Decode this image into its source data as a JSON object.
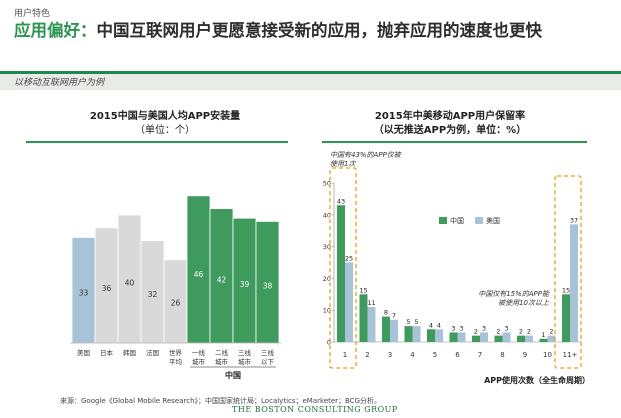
{
  "header": {
    "kicker": "用户特色",
    "title_highlight": "应用偏好：",
    "title_rest": "中国互联网用户更愿意接受新的应用，抛弃应用的速度也更快",
    "subtitle": "以移动互联网用户为例"
  },
  "left_chart_title": "2015中国与美国人均APP安装量",
  "left_chart_unit": "（单位：个）",
  "right_chart_title": "2015年中美移动APP用户保留率",
  "right_chart_unit": "（以无推送APP为例，单位：%）",
  "colors": {
    "green": "#3f9a5e",
    "blue": "#a8c3d8",
    "gray": "#d9d9d9",
    "accent": "#2e9452"
  },
  "chart_data": [
    {
      "type": "bar",
      "title": "2015中国与美国人均APP安装量",
      "subtitle": "（单位：个）",
      "categories": [
        "美国",
        "日本",
        "韩国",
        "法国",
        "世界平均",
        "一线城市",
        "二线城市",
        "三线城市",
        "三线以下"
      ],
      "values": [
        33,
        36,
        40,
        32,
        26,
        46,
        42,
        39,
        38
      ],
      "colors": [
        "blue",
        "gray",
        "gray",
        "gray",
        "gray",
        "green",
        "green",
        "green",
        "green"
      ],
      "group_label": "中国",
      "ylim": [
        0,
        50
      ]
    },
    {
      "type": "bar",
      "title": "2015年中美移动APP用户保留率",
      "subtitle": "（以无推送APP为例，单位：%）",
      "categories": [
        "1",
        "2",
        "3",
        "4",
        "5",
        "6",
        "7",
        "8",
        "9",
        "10",
        "11+"
      ],
      "series": [
        {
          "name": "中国",
          "values": [
            43,
            15,
            8,
            5,
            4,
            3,
            2,
            2,
            2,
            1,
            15
          ]
        },
        {
          "name": "美国",
          "values": [
            25,
            11,
            7,
            5,
            4,
            3,
            3,
            3,
            2,
            2,
            37
          ]
        }
      ],
      "ylim": [
        0,
        50
      ],
      "yticks": [
        0,
        10,
        20,
        30,
        40,
        50
      ],
      "xlabel": "APP使用次数（全生命周期）",
      "legend_position": "center-right",
      "annotations": [
        "中国有43%的APP仅被使用1次",
        "中国仅有15%的APP能被使用10次以上"
      ]
    }
  ],
  "footer": {
    "source": "来源：Google《Global Mobile Research》；中国国家统计局；Localytics；eMarketer；BCG分析。",
    "logo": "THE BOSTON CONSULTING GROUP"
  }
}
